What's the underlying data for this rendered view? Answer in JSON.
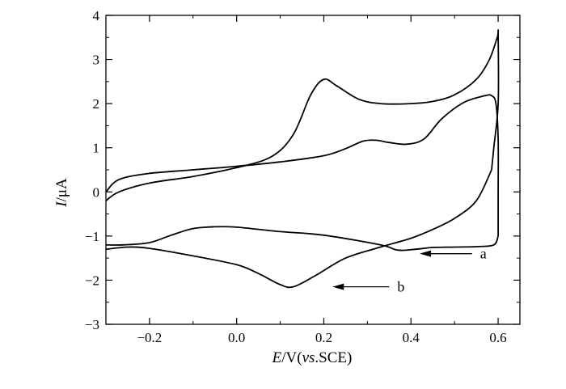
{
  "chart_data": {
    "type": "line",
    "title": "",
    "xlabel": {
      "italic": "E",
      "rest1": "/V(",
      "italic2": "vs",
      "rest2": ".SCE)"
    },
    "ylabel": {
      "italic": "I",
      "rest": "/μA"
    },
    "xlim": [
      -0.3,
      0.65
    ],
    "ylim": [
      -3,
      4
    ],
    "x_major_ticks": [
      -0.2,
      0.0,
      0.2,
      0.4,
      0.6
    ],
    "x_tick_labels": [
      "−0.2",
      "0.0",
      "0.2",
      "0.4",
      "0.6"
    ],
    "x_minor_ticks": [
      -0.3,
      -0.1,
      0.1,
      0.3,
      0.5
    ],
    "y_major_ticks": [
      -3,
      -2,
      -1,
      0,
      1,
      2,
      3,
      4
    ],
    "y_tick_labels": [
      "−3",
      "−2",
      "−1",
      "0",
      "1",
      "2",
      "3",
      "4"
    ],
    "y_minor_ticks": [
      -2.5,
      -1.5,
      -0.5,
      0.5,
      1.5,
      2.5,
      3.5
    ],
    "grid": false,
    "series": [
      {
        "name": "a",
        "forward": [
          [
            -0.3,
            0.0
          ],
          [
            -0.27,
            0.28
          ],
          [
            -0.2,
            0.42
          ],
          [
            -0.1,
            0.5
          ],
          [
            0.0,
            0.58
          ],
          [
            0.1,
            0.68
          ],
          [
            0.2,
            0.82
          ],
          [
            0.25,
            0.98
          ],
          [
            0.29,
            1.15
          ],
          [
            0.32,
            1.17
          ],
          [
            0.35,
            1.12
          ],
          [
            0.39,
            1.08
          ],
          [
            0.43,
            1.2
          ],
          [
            0.47,
            1.65
          ],
          [
            0.52,
            2.02
          ],
          [
            0.57,
            2.18
          ],
          [
            0.585,
            2.18
          ],
          [
            0.595,
            2.0
          ],
          [
            0.6,
            1.2
          ],
          [
            0.6,
            0.0
          ],
          [
            0.6,
            -1.0
          ]
        ],
        "reverse": [
          [
            0.6,
            -1.0
          ],
          [
            0.59,
            -1.2
          ],
          [
            0.55,
            -1.24
          ],
          [
            0.5,
            -1.25
          ],
          [
            0.45,
            -1.26
          ],
          [
            0.41,
            -1.3
          ],
          [
            0.37,
            -1.32
          ],
          [
            0.33,
            -1.2
          ],
          [
            0.2,
            -0.98
          ],
          [
            0.1,
            -0.9
          ],
          [
            0.0,
            -0.8
          ],
          [
            -0.05,
            -0.79
          ],
          [
            -0.1,
            -0.83
          ],
          [
            -0.15,
            -0.98
          ],
          [
            -0.2,
            -1.15
          ],
          [
            -0.26,
            -1.2
          ],
          [
            -0.3,
            -1.2
          ]
        ]
      },
      {
        "name": "b",
        "forward": [
          [
            -0.3,
            -0.2
          ],
          [
            -0.27,
            0.0
          ],
          [
            -0.2,
            0.2
          ],
          [
            -0.1,
            0.35
          ],
          [
            0.0,
            0.55
          ],
          [
            0.08,
            0.8
          ],
          [
            0.13,
            1.3
          ],
          [
            0.17,
            2.2
          ],
          [
            0.2,
            2.55
          ],
          [
            0.23,
            2.4
          ],
          [
            0.28,
            2.1
          ],
          [
            0.33,
            2.0
          ],
          [
            0.4,
            2.0
          ],
          [
            0.45,
            2.05
          ],
          [
            0.5,
            2.2
          ],
          [
            0.55,
            2.55
          ],
          [
            0.58,
            3.0
          ],
          [
            0.598,
            3.5
          ],
          [
            0.6,
            3.55
          ],
          [
            0.6,
            2.0
          ],
          [
            0.59,
            1.0
          ],
          [
            0.585,
            0.5
          ]
        ],
        "reverse": [
          [
            0.585,
            0.5
          ],
          [
            0.55,
            -0.2
          ],
          [
            0.5,
            -0.6
          ],
          [
            0.45,
            -0.85
          ],
          [
            0.4,
            -1.05
          ],
          [
            0.33,
            -1.25
          ],
          [
            0.25,
            -1.5
          ],
          [
            0.18,
            -1.9
          ],
          [
            0.13,
            -2.15
          ],
          [
            0.1,
            -2.1
          ],
          [
            0.05,
            -1.85
          ],
          [
            0.0,
            -1.65
          ],
          [
            -0.1,
            -1.45
          ],
          [
            -0.2,
            -1.28
          ],
          [
            -0.25,
            -1.25
          ],
          [
            -0.3,
            -1.3
          ]
        ]
      }
    ],
    "annotations": [
      {
        "label": "a",
        "arrow_from": [
          0.54,
          -1.4
        ],
        "arrow_to": [
          0.42,
          -1.4
        ]
      },
      {
        "label": "b",
        "arrow_from": [
          0.35,
          -2.15
        ],
        "arrow_to": [
          0.22,
          -2.15
        ]
      }
    ]
  }
}
